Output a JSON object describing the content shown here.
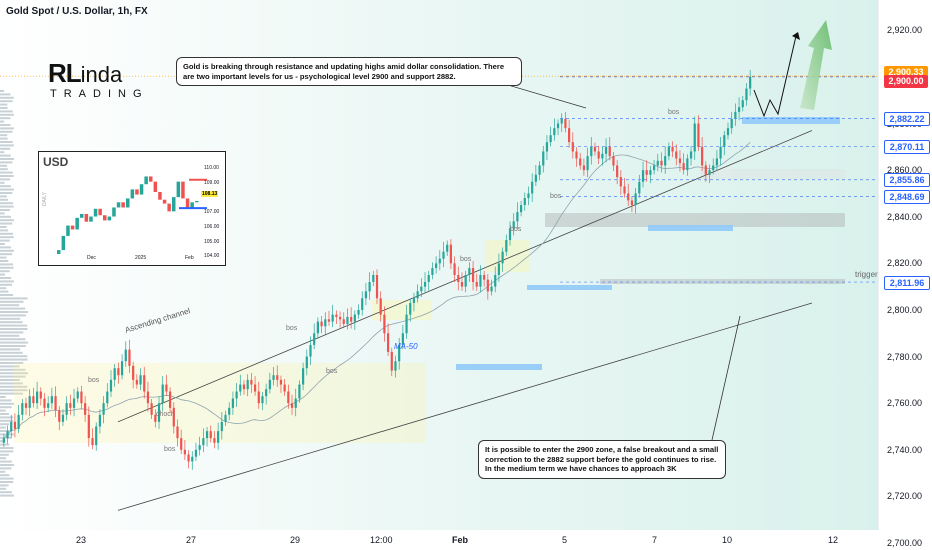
{
  "header": {
    "title": "Gold Spot / U.S. Dollar, 1h, FX"
  },
  "logo": {
    "main": "RL",
    "main_suffix": "inda",
    "sub": "TRADING"
  },
  "annotations": {
    "top_note": "Gold is breaking through resistance and updating highs amid dollar consolidation. There are two important levels for us - psychological level 2900 and support 2882.",
    "bottom_note": "It is possible to enter the 2900 zone, a false breakout and a small correction to the 2882 support before the gold continues to rise. In the medium term we have chances to approach 3K",
    "ascending_channel": "Ascending channel",
    "ma_label": "MA-50",
    "trigger": "trigger",
    "bos": "bos",
    "choch": "choch"
  },
  "inset": {
    "title": "USD",
    "side_label": "DAILY",
    "x_ticks": [
      "Dec",
      "2025",
      "Feb"
    ],
    "y_ticks": [
      "110.00",
      "109.00",
      "108.00",
      "107.00",
      "106.00",
      "105.00",
      "104.00"
    ],
    "current": "108.13"
  },
  "colors": {
    "up": "#26a69a",
    "down": "#ef5350",
    "price_red": "#f23645",
    "price_orange": "#ff9800",
    "level_blue": "#2962ff",
    "zone_yellow": "#fff59d",
    "arrow_green": "#66bb6a"
  },
  "chart_data": {
    "type": "candlestick",
    "title": "Gold Spot / U.S. Dollar, 1h, FX",
    "y_ticks": [
      2700,
      2720,
      2740,
      2760,
      2780,
      2800,
      2820,
      2840,
      2860,
      2880,
      2900,
      2920
    ],
    "y_tick_labels": [
      "2,700.00",
      "2,720.00",
      "2,740.00",
      "2,760.00",
      "2,780.00",
      "2,800.00",
      "2,820.00",
      "2,840.00",
      "2,860.00",
      "2,880.00",
      "2,900.00",
      "2,920.00"
    ],
    "ylim": [
      2697,
      2933
    ],
    "x_tick_labels": [
      "23",
      "27",
      "29",
      "12:00",
      "Feb",
      "5",
      "7",
      "10",
      "12"
    ],
    "price_levels": [
      {
        "label": "2,900.33",
        "value": 2900.33,
        "kind": "current"
      },
      {
        "label": "2,900.00",
        "value": 2900.0,
        "kind": "psychological"
      },
      {
        "label": "2,882.22",
        "value": 2882.22,
        "kind": "support"
      },
      {
        "label": "2,870.11",
        "value": 2870.11,
        "kind": "level"
      },
      {
        "label": "2,855.86",
        "value": 2855.86,
        "kind": "level"
      },
      {
        "label": "2,848.69",
        "value": 2848.69,
        "kind": "level"
      },
      {
        "label": "2,811.96",
        "value": 2811.96,
        "kind": "trigger"
      }
    ],
    "channel": {
      "upper": [
        [
          2752,
          2783
        ],
        [
          2877,
          2869
        ]
      ],
      "lower": [
        [
          2714,
          2716
        ],
        [
          2803,
          2810
        ]
      ]
    },
    "series": [
      {
        "name": "XAUUSD",
        "close": [
          2745,
          2748,
          2752,
          2749,
          2755,
          2760,
          2758,
          2763,
          2760,
          2765,
          2762,
          2758,
          2760,
          2763,
          2757,
          2752,
          2755,
          2760,
          2758,
          2762,
          2765,
          2760,
          2755,
          2745,
          2742,
          2750,
          2755,
          2760,
          2765,
          2770,
          2775,
          2772,
          2778,
          2783,
          2776,
          2770,
          2768,
          2772,
          2765,
          2760,
          2755,
          2752,
          2760,
          2768,
          2765,
          2758,
          2750,
          2745,
          2740,
          2738,
          2735,
          2737,
          2740,
          2742,
          2745,
          2748,
          2745,
          2743,
          2748,
          2752,
          2755,
          2758,
          2762,
          2765,
          2768,
          2766,
          2770,
          2768,
          2765,
          2760,
          2763,
          2766,
          2770,
          2772,
          2770,
          2768,
          2765,
          2760,
          2758,
          2762,
          2768,
          2775,
          2780,
          2785,
          2790,
          2795,
          2793,
          2796,
          2795,
          2798,
          2797,
          2796,
          2794,
          2797,
          2795,
          2798,
          2800,
          2805,
          2808,
          2812,
          2815,
          2805,
          2798,
          2790,
          2782,
          2774,
          2778,
          2785,
          2790,
          2798,
          2803,
          2805,
          2808,
          2810,
          2812,
          2815,
          2818,
          2820,
          2822,
          2825,
          2828,
          2820,
          2815,
          2812,
          2810,
          2815,
          2818,
          2812,
          2810,
          2815,
          2813,
          2808,
          2810,
          2815,
          2820,
          2825,
          2830,
          2835,
          2838,
          2842,
          2845,
          2848,
          2850,
          2855,
          2858,
          2862,
          2868,
          2872,
          2875,
          2878,
          2880,
          2882,
          2878,
          2872,
          2868,
          2865,
          2862,
          2860,
          2866,
          2870,
          2868,
          2865,
          2867,
          2870,
          2866,
          2862,
          2857,
          2853,
          2850,
          2847,
          2845,
          2850,
          2855,
          2860,
          2858,
          2860,
          2862,
          2864,
          2862,
          2866,
          2870,
          2868,
          2865,
          2863,
          2860,
          2865,
          2868,
          2880,
          2870,
          2862,
          2858,
          2860,
          2862,
          2865,
          2870,
          2875,
          2878,
          2882,
          2885,
          2887,
          2890,
          2895,
          2900
        ]
      }
    ],
    "xlabel": "",
    "ylabel": ""
  }
}
